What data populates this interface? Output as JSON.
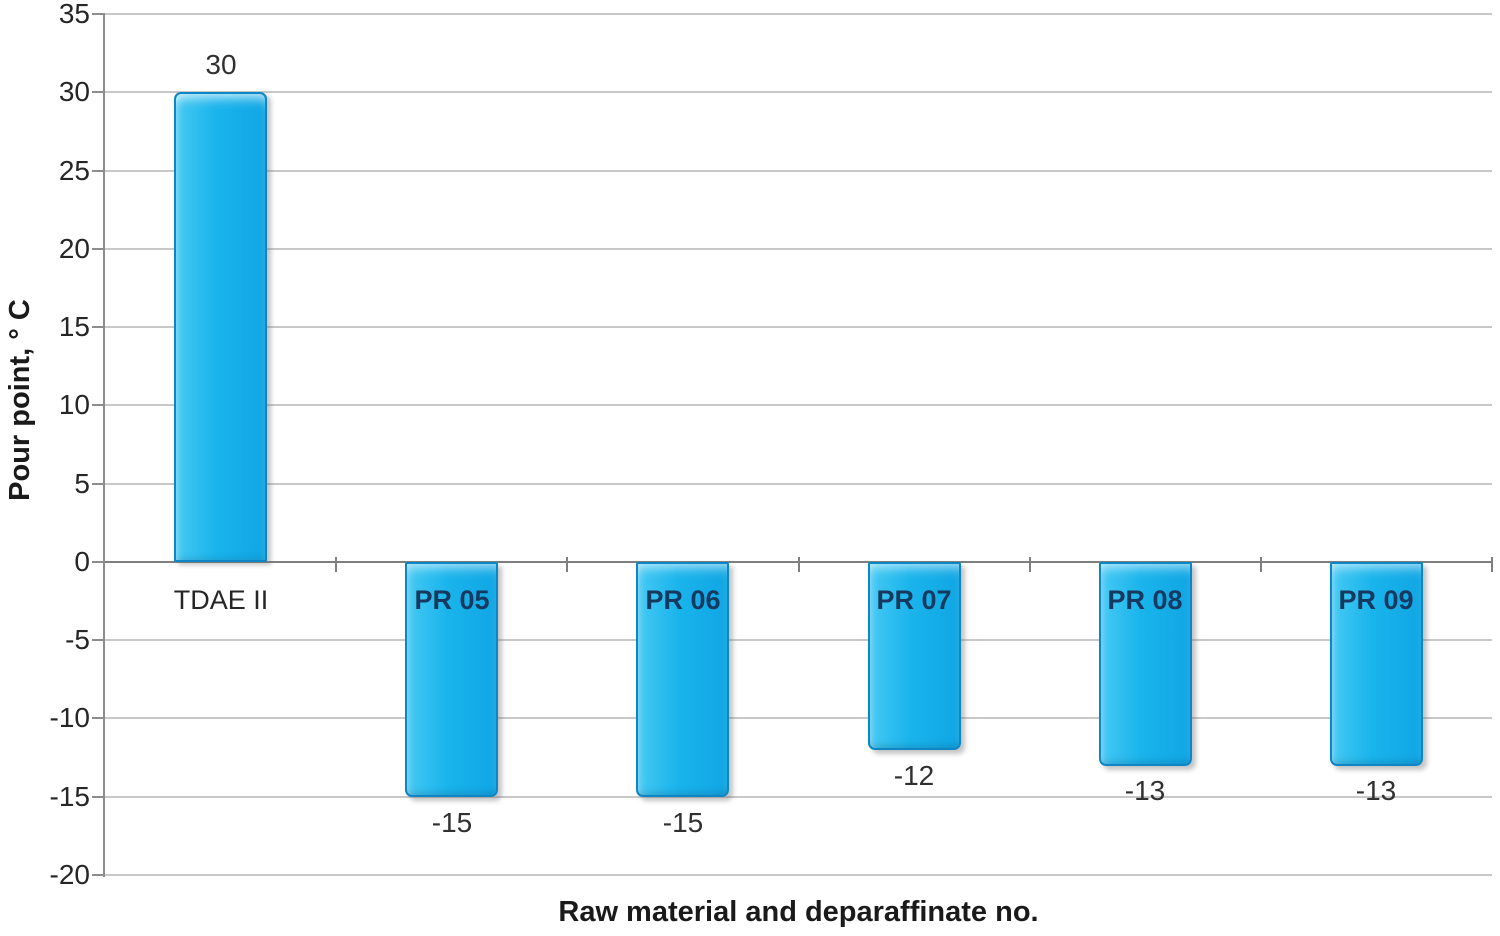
{
  "chart_data": {
    "type": "bar",
    "categories": [
      "TDAE II",
      "PR 05",
      "PR 06",
      "PR 07",
      "PR 08",
      "PR 09"
    ],
    "values": [
      30,
      -15,
      -15,
      -12,
      -13,
      -13
    ],
    "data_labels": [
      "30",
      "-15",
      "-15",
      "-12",
      "-13",
      "-13"
    ],
    "title": "",
    "xlabel": "Raw material and deparaffinate no.",
    "ylabel": "Pour point, ° C",
    "ylim": [
      -20,
      35
    ],
    "ytick_step": 5,
    "yticks": [
      35,
      30,
      25,
      20,
      15,
      10,
      5,
      0,
      -5,
      -10,
      -15,
      -20
    ],
    "grid": "horizontal-only",
    "legend": "none",
    "colors": {
      "background": "#ffffff",
      "bar_fill": "#1ab4ec",
      "bar_fill_light": "#44c9f3",
      "bar_fill_dark": "#10a6e4",
      "bar_border": "#0d86c6",
      "gridline": "#c8c8c8",
      "axis_line": "#8c8c8c",
      "zero_line": "#7f7f7f",
      "tick_label": "#262626",
      "value_label": "#303030",
      "category_label": "#262626",
      "in_bar_label": "#15395f"
    }
  }
}
